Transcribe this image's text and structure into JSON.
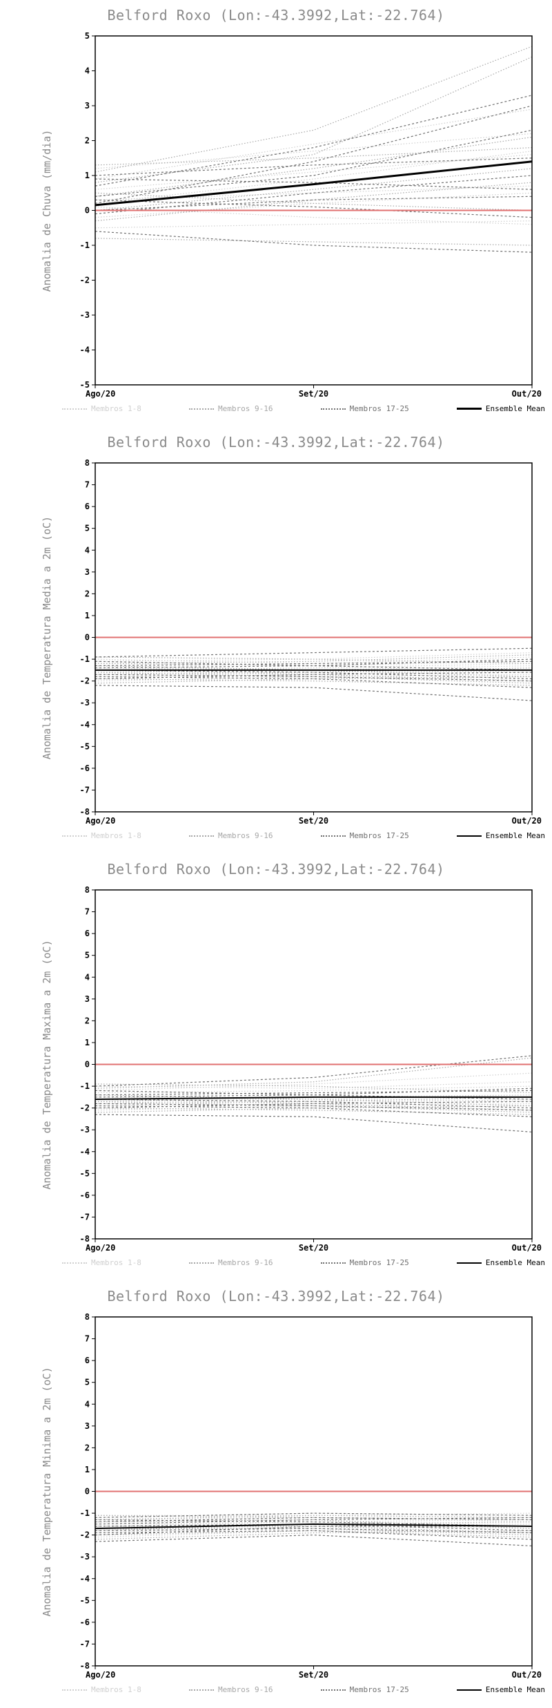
{
  "chart_data": [
    {
      "type": "line",
      "title": "Belford Roxo (Lon:-43.3992,Lat:-22.764)",
      "ylabel": "Anomalia de Chuva (mm/dia)",
      "x_tick_labels": [
        "Ago/20",
        "Set/20",
        "Out/20"
      ],
      "ylim": [
        -5,
        5
      ],
      "ytick_step": 1,
      "grid": false,
      "legend_position": "bottom",
      "zero_line": {
        "value": 0,
        "color": "#e07070"
      },
      "member_groups": [
        {
          "name": "Membros 1-8",
          "color": "#cfcfcf",
          "dash": "1.5,2.5",
          "members": [
            [
              0.9,
              1.9,
              2.9
            ],
            [
              0.3,
              0.5,
              0.7
            ],
            [
              -0.2,
              0.2,
              0.5
            ],
            [
              1.2,
              1.7,
              2.2
            ],
            [
              0.1,
              -0.2,
              -0.4
            ],
            [
              0.6,
              1.1,
              1.6
            ],
            [
              -0.5,
              -0.4,
              -0.3
            ],
            [
              0.2,
              0.9,
              1.7
            ]
          ]
        },
        {
          "name": "Membros 9-16",
          "color": "#a6a6a6",
          "dash": "1.5,2.5",
          "members": [
            [
              1.1,
              2.3,
              4.7
            ],
            [
              0.8,
              1.6,
              4.4
            ],
            [
              0.4,
              1.2,
              2.1
            ],
            [
              -0.8,
              -0.9,
              -1.0
            ],
            [
              0.0,
              0.6,
              1.2
            ],
            [
              0.5,
              0.2,
              0.0
            ],
            [
              1.3,
              1.5,
              1.8
            ],
            [
              -0.3,
              0.3,
              0.8
            ]
          ]
        },
        {
          "name": "Membros 17-25",
          "color": "#6f6f6f",
          "dash": "3,3",
          "members": [
            [
              0.7,
              1.8,
              3.3
            ],
            [
              0.2,
              1.4,
              3.0
            ],
            [
              -0.6,
              -1.0,
              -1.2
            ],
            [
              0.9,
              0.8,
              0.6
            ],
            [
              0.0,
              0.3,
              0.4
            ],
            [
              0.4,
              1.0,
              2.3
            ],
            [
              -0.1,
              0.5,
              1.0
            ],
            [
              1.0,
              1.3,
              1.5
            ],
            [
              0.3,
              0.1,
              -0.2
            ]
          ]
        }
      ],
      "ensemble_mean": {
        "name": "Ensemble Mean",
        "color": "#000000",
        "width": 3,
        "values": [
          0.15,
          0.75,
          1.4
        ]
      }
    },
    {
      "type": "line",
      "title": "Belford Roxo (Lon:-43.3992,Lat:-22.764)",
      "ylabel": "Anomalia de Temperatura Media a 2m (oC)",
      "x_tick_labels": [
        "Ago/20",
        "Set/20",
        "Out/20"
      ],
      "ylim": [
        -8,
        8
      ],
      "ytick_step": 1,
      "grid": false,
      "legend_position": "bottom",
      "zero_line": {
        "value": 0,
        "color": "#e07070"
      },
      "member_groups": [
        {
          "name": "Membros 1-8",
          "color": "#cfcfcf",
          "dash": "1.5,2.5",
          "members": [
            [
              -1.2,
              -1.3,
              -1.1
            ],
            [
              -1.5,
              -1.4,
              -1.2
            ],
            [
              -1.8,
              -1.7,
              -1.5
            ],
            [
              -1.0,
              -1.2,
              -0.9
            ],
            [
              -2.0,
              -1.8,
              -1.7
            ],
            [
              -1.4,
              -1.5,
              -1.6
            ],
            [
              -1.6,
              -1.5,
              -1.3
            ],
            [
              -1.1,
              -1.0,
              -0.7
            ]
          ]
        },
        {
          "name": "Membros 9-16",
          "color": "#a6a6a6",
          "dash": "1.5,2.5",
          "members": [
            [
              -1.3,
              -1.5,
              -1.8
            ],
            [
              -1.7,
              -1.6,
              -1.4
            ],
            [
              -1.9,
              -2.0,
              -2.2
            ],
            [
              -0.9,
              -1.0,
              -1.2
            ],
            [
              -1.5,
              -1.7,
              -2.0
            ],
            [
              -2.1,
              -1.9,
              -1.8
            ],
            [
              -1.2,
              -1.1,
              -0.8
            ],
            [
              -1.6,
              -1.8,
              -2.1
            ]
          ]
        },
        {
          "name": "Membros 17-25",
          "color": "#6f6f6f",
          "dash": "3,3",
          "members": [
            [
              -1.4,
              -1.3,
              -1.0
            ],
            [
              -1.8,
              -1.9,
              -2.3
            ],
            [
              -0.9,
              -0.7,
              -0.5
            ],
            [
              -2.2,
              -2.3,
              -2.9
            ],
            [
              -1.5,
              -1.6,
              -1.9
            ],
            [
              -1.3,
              -1.2,
              -1.1
            ],
            [
              -1.7,
              -1.8,
              -2.0
            ],
            [
              -1.9,
              -1.7,
              -1.6
            ],
            [
              -1.1,
              -1.3,
              -1.5
            ]
          ]
        }
      ],
      "ensemble_mean": {
        "name": "Ensemble Mean",
        "color": "#000000",
        "width": 2,
        "values": [
          -1.5,
          -1.5,
          -1.5
        ]
      }
    },
    {
      "type": "line",
      "title": "Belford Roxo (Lon:-43.3992,Lat:-22.764)",
      "ylabel": "Anomalia de Temperatura Maxima a 2m (oC)",
      "x_tick_labels": [
        "Ago/20",
        "Set/20",
        "Out/20"
      ],
      "ylim": [
        -8,
        8
      ],
      "ytick_step": 1,
      "grid": false,
      "legend_position": "bottom",
      "zero_line": {
        "value": 0,
        "color": "#e07070"
      },
      "member_groups": [
        {
          "name": "Membros 1-8",
          "color": "#cfcfcf",
          "dash": "1.5,2.5",
          "members": [
            [
              -1.3,
              -1.2,
              -1.0
            ],
            [
              -1.6,
              -1.5,
              -1.4
            ],
            [
              -1.9,
              -1.8,
              -1.6
            ],
            [
              -1.0,
              -1.1,
              -0.8
            ],
            [
              -2.1,
              -1.9,
              -1.8
            ],
            [
              -1.5,
              -1.6,
              -1.7
            ],
            [
              -1.7,
              -1.6,
              -1.4
            ],
            [
              -1.2,
              -0.9,
              -0.4
            ]
          ]
        },
        {
          "name": "Membros 9-16",
          "color": "#a6a6a6",
          "dash": "1.5,2.5",
          "members": [
            [
              -1.4,
              -1.6,
              -1.9
            ],
            [
              -1.8,
              -1.7,
              -1.5
            ],
            [
              -2.0,
              -2.1,
              -2.3
            ],
            [
              -0.9,
              -1.0,
              -1.3
            ],
            [
              -1.6,
              -1.8,
              -2.1
            ],
            [
              -2.2,
              -2.0,
              -1.9
            ],
            [
              -1.1,
              -0.8,
              0.3
            ],
            [
              -1.7,
              -1.9,
              -2.2
            ]
          ]
        },
        {
          "name": "Membros 17-25",
          "color": "#6f6f6f",
          "dash": "3,3",
          "members": [
            [
              -1.5,
              -1.4,
              -1.1
            ],
            [
              -1.9,
              -2.0,
              -2.4
            ],
            [
              -1.0,
              -0.6,
              0.4
            ],
            [
              -2.3,
              -2.4,
              -3.1
            ],
            [
              -1.6,
              -1.7,
              -2.0
            ],
            [
              -1.4,
              -1.3,
              -1.2
            ],
            [
              -1.8,
              -1.9,
              -2.1
            ],
            [
              -2.0,
              -1.8,
              -1.7
            ],
            [
              -1.2,
              -1.4,
              -1.6
            ]
          ]
        }
      ],
      "ensemble_mean": {
        "name": "Ensemble Mean",
        "color": "#000000",
        "width": 2,
        "values": [
          -1.6,
          -1.5,
          -1.5
        ]
      }
    },
    {
      "type": "line",
      "title": "Belford Roxo (Lon:-43.3992,Lat:-22.764)",
      "ylabel": "Anomalia de Temperatura Minima a 2m (oC)",
      "x_tick_labels": [
        "Ago/20",
        "Set/20",
        "Out/20"
      ],
      "ylim": [
        -8,
        8
      ],
      "ytick_step": 1,
      "grid": false,
      "legend_position": "bottom",
      "zero_line": {
        "value": 0,
        "color": "#e07070"
      },
      "member_groups": [
        {
          "name": "Membros 1-8",
          "color": "#cfcfcf",
          "dash": "1.5,2.5",
          "members": [
            [
              -1.3,
              -1.2,
              -1.4
            ],
            [
              -1.6,
              -1.4,
              -1.3
            ],
            [
              -1.9,
              -1.6,
              -1.7
            ],
            [
              -1.1,
              -1.1,
              -1.0
            ],
            [
              -2.1,
              -1.8,
              -1.9
            ],
            [
              -1.5,
              -1.4,
              -1.6
            ],
            [
              -1.7,
              -1.5,
              -1.5
            ],
            [
              -1.2,
              -1.0,
              -1.1
            ]
          ]
        },
        {
          "name": "Membros 9-16",
          "color": "#a6a6a6",
          "dash": "1.5,2.5",
          "members": [
            [
              -1.4,
              -1.3,
              -1.7
            ],
            [
              -1.8,
              -1.5,
              -1.4
            ],
            [
              -2.0,
              -1.8,
              -2.1
            ],
            [
              -1.1,
              -1.2,
              -1.3
            ],
            [
              -1.6,
              -1.6,
              -1.9
            ],
            [
              -2.2,
              -1.9,
              -1.8
            ],
            [
              -1.3,
              -1.1,
              -1.2
            ],
            [
              -1.7,
              -1.7,
              -2.0
            ]
          ]
        },
        {
          "name": "Membros 17-25",
          "color": "#6f6f6f",
          "dash": "3,3",
          "members": [
            [
              -1.5,
              -1.3,
              -1.2
            ],
            [
              -1.9,
              -1.8,
              -2.2
            ],
            [
              -1.2,
              -1.0,
              -1.1
            ],
            [
              -2.3,
              -2.0,
              -2.5
            ],
            [
              -1.6,
              -1.5,
              -1.8
            ],
            [
              -1.4,
              -1.2,
              -1.3
            ],
            [
              -1.8,
              -1.7,
              -1.9
            ],
            [
              -2.0,
              -1.6,
              -1.6
            ],
            [
              -1.3,
              -1.4,
              -1.6
            ]
          ]
        }
      ],
      "ensemble_mean": {
        "name": "Ensemble Mean",
        "color": "#000000",
        "width": 2,
        "values": [
          -1.7,
          -1.5,
          -1.6
        ]
      }
    }
  ]
}
